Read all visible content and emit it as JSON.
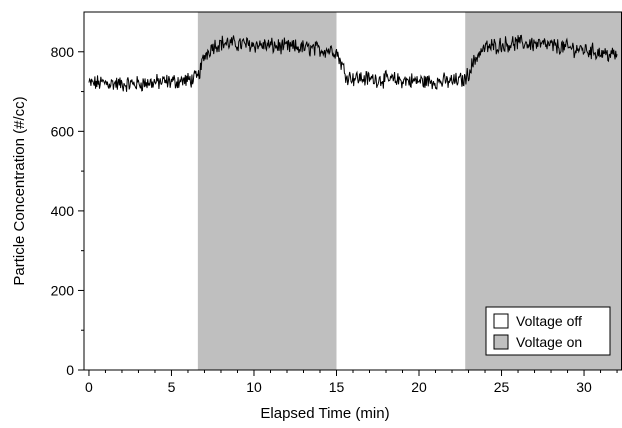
{
  "chart_data": {
    "type": "line",
    "xlabel": "Elapsed Time (min)",
    "ylabel": "Particle Concentration (#/cc)",
    "xlim": [
      -0.3,
      32.3
    ],
    "ylim": [
      0,
      900
    ],
    "xticks": [
      0,
      5,
      10,
      15,
      20,
      25,
      30
    ],
    "yticks": [
      0,
      200,
      400,
      600,
      800
    ],
    "x_tick_labels": [
      "0",
      "5",
      "10",
      "15",
      "20",
      "25",
      "30"
    ],
    "y_tick_labels": [
      "0",
      "200",
      "400",
      "600",
      "800"
    ],
    "grid": false,
    "legend": {
      "position": "bottom-right",
      "entries": [
        {
          "label": "Voltage off",
          "color": "#ffffff"
        },
        {
          "label": "Voltage on",
          "color": "#bfbfbf"
        }
      ]
    },
    "shaded_regions": [
      {
        "label": "Voltage on",
        "x_start": 6.6,
        "x_end": 15.0,
        "color": "#bfbfbf"
      },
      {
        "label": "Voltage on",
        "x_start": 22.8,
        "x_end": 32.3,
        "color": "#bfbfbf"
      }
    ],
    "series": [
      {
        "color": "#000000",
        "x": [
          0,
          1,
          2,
          3,
          4,
          5,
          6,
          6.6,
          7.0,
          7.5,
          8,
          9,
          10,
          11,
          12,
          13,
          14,
          14.8,
          15.0,
          15.3,
          15.6,
          16,
          17,
          18,
          19,
          20,
          21,
          22,
          22.8,
          23.2,
          23.6,
          24,
          25,
          26,
          27,
          28,
          29,
          30,
          31,
          32
        ],
        "values": [
          720,
          722,
          718,
          720,
          723,
          725,
          728,
          735,
          790,
          815,
          822,
          820,
          818,
          815,
          812,
          810,
          805,
          805,
          800,
          770,
          740,
          735,
          732,
          730,
          728,
          726,
          725,
          726,
          730,
          765,
          795,
          810,
          818,
          822,
          820,
          815,
          810,
          805,
          798,
          790
        ]
      }
    ]
  }
}
